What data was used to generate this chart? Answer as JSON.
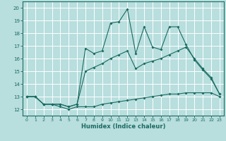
{
  "title": "",
  "xlabel": "Humidex (Indice chaleur)",
  "bg_color": "#b8dede",
  "grid_color": "#ffffff",
  "line_color": "#1a6b60",
  "xlim": [
    -0.5,
    23.5
  ],
  "ylim": [
    11.5,
    20.5
  ],
  "xticks": [
    0,
    1,
    2,
    3,
    4,
    5,
    6,
    7,
    8,
    9,
    10,
    11,
    12,
    13,
    14,
    15,
    16,
    17,
    18,
    19,
    20,
    21,
    22,
    23
  ],
  "yticks": [
    12,
    13,
    14,
    15,
    16,
    17,
    18,
    19,
    20
  ],
  "line1_x": [
    0,
    1,
    2,
    3,
    4,
    5,
    6,
    7,
    8,
    9,
    10,
    11,
    12,
    13,
    14,
    15,
    16,
    17,
    18,
    19,
    20,
    21,
    22,
    23
  ],
  "line1_y": [
    13.0,
    13.0,
    12.4,
    12.4,
    12.2,
    12.0,
    12.2,
    12.2,
    12.2,
    12.4,
    12.5,
    12.6,
    12.7,
    12.8,
    12.9,
    13.0,
    13.1,
    13.2,
    13.2,
    13.3,
    13.3,
    13.3,
    13.3,
    13.0
  ],
  "line2_x": [
    0,
    1,
    2,
    3,
    4,
    5,
    6,
    7,
    8,
    9,
    10,
    11,
    12,
    13,
    14,
    15,
    16,
    17,
    18,
    19,
    20,
    21,
    22,
    23
  ],
  "line2_y": [
    13.0,
    13.0,
    12.4,
    12.4,
    12.4,
    12.2,
    12.4,
    15.0,
    15.3,
    15.6,
    16.0,
    16.3,
    16.6,
    15.2,
    15.6,
    15.8,
    16.0,
    16.3,
    16.6,
    16.9,
    16.0,
    15.2,
    14.5,
    13.2
  ],
  "line3_x": [
    0,
    1,
    2,
    3,
    4,
    5,
    6,
    7,
    8,
    9,
    10,
    11,
    12,
    13,
    14,
    15,
    16,
    17,
    18,
    19,
    20,
    21,
    22,
    23
  ],
  "line3_y": [
    13.0,
    13.0,
    12.4,
    12.4,
    12.4,
    12.2,
    12.4,
    16.8,
    16.4,
    16.6,
    18.8,
    18.9,
    19.9,
    16.4,
    18.5,
    16.9,
    16.7,
    18.5,
    18.5,
    17.1,
    15.9,
    15.1,
    14.4,
    13.2
  ]
}
